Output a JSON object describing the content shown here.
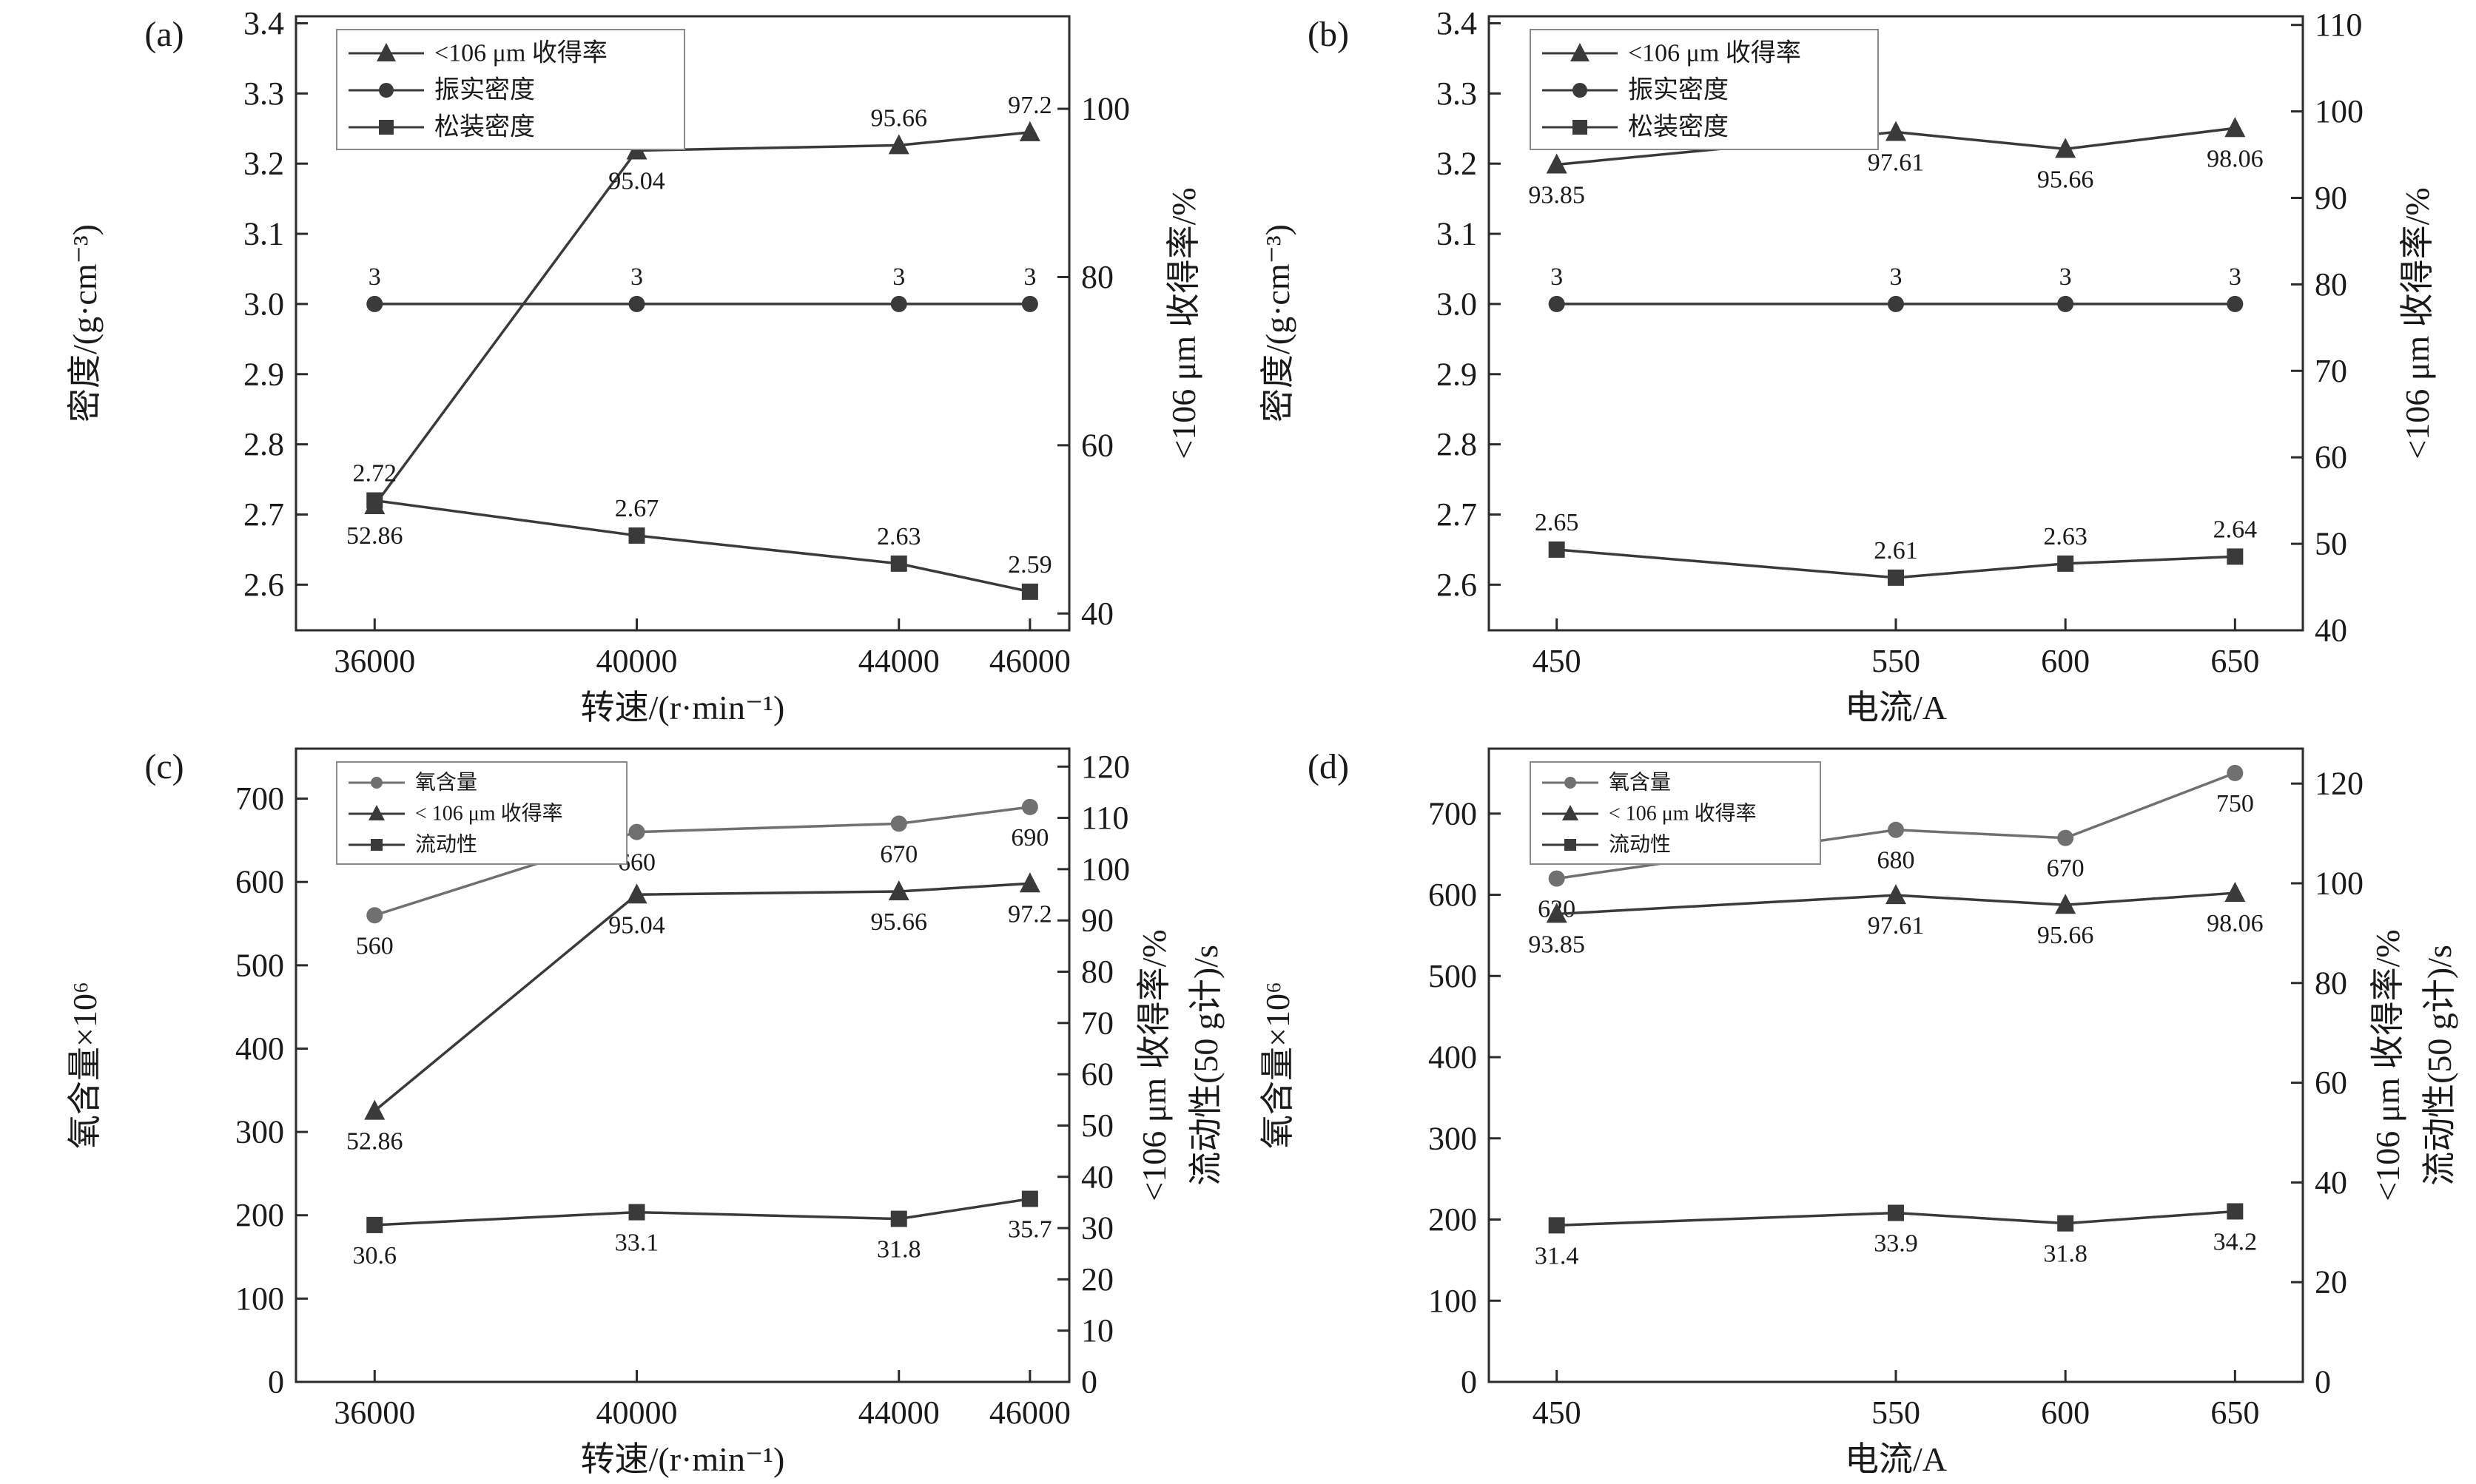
{
  "figure": {
    "background": "#ffffff",
    "text_color": "#1a1a1a",
    "frame_color": "#2b2b2b",
    "default_series_color": "#3a3a3a",
    "oxygen_series_color": "#707070"
  },
  "chart_data": [
    {
      "panel": "(a)",
      "type": "line",
      "xlabel": "转速/(r·min⁻¹)",
      "x": [
        36000,
        40000,
        44000,
        46000
      ],
      "x_tick_labels": [
        "36000",
        "40000",
        "44000",
        "46000"
      ],
      "x_domain": [
        34800,
        46600
      ],
      "left_axis": {
        "label": "密度/(g·cm⁻³)",
        "ticks": [
          2.6,
          2.7,
          2.8,
          2.9,
          3.0,
          3.1,
          3.2,
          3.3,
          3.4
        ],
        "tick_labels": [
          "2.6",
          "2.7",
          "2.8",
          "2.9",
          "3.0",
          "3.1",
          "3.2",
          "3.3",
          "3.4"
        ],
        "domain": [
          2.535,
          3.41
        ]
      },
      "right_axis": {
        "labels": [
          "<106 μm 收得率/%"
        ],
        "ticks": [
          40,
          60,
          80,
          100
        ],
        "tick_labels": [
          "40",
          "60",
          "80",
          "100"
        ],
        "domain": [
          38,
          111
        ]
      },
      "legend": [
        {
          "marker": "triangle",
          "label": "<106 μm 收得率"
        },
        {
          "marker": "circle",
          "label": "振实密度"
        },
        {
          "marker": "square",
          "label": "松装密度"
        }
      ],
      "series": [
        {
          "name": "<106 μm 收得率",
          "marker": "triangle",
          "axis": "right",
          "color": "#3a3a3a",
          "values": [
            52.86,
            95.04,
            95.66,
            97.2
          ],
          "point_labels": [
            "52.86",
            "95.04",
            "95.66",
            "97.2"
          ],
          "label_pos": [
            "below",
            "below",
            "above",
            "above"
          ]
        },
        {
          "name": "振实密度",
          "marker": "circle",
          "axis": "left",
          "color": "#3a3a3a",
          "values": [
            3,
            3,
            3,
            3
          ],
          "point_labels": [
            "3",
            "3",
            "3",
            "3"
          ],
          "label_pos": [
            "above",
            "above",
            "above",
            "above"
          ]
        },
        {
          "name": "松装密度",
          "marker": "square",
          "axis": "left",
          "color": "#3a3a3a",
          "values": [
            2.72,
            2.67,
            2.63,
            2.59
          ],
          "point_labels": [
            "2.72",
            "2.67",
            "2.63",
            "2.59"
          ],
          "label_pos": [
            "above",
            "above",
            "above",
            "above"
          ]
        }
      ]
    },
    {
      "panel": "(b)",
      "type": "line",
      "xlabel": "电流/A",
      "x": [
        450,
        550,
        600,
        650
      ],
      "x_tick_labels": [
        "450",
        "550",
        "600",
        "650"
      ],
      "x_domain": [
        430,
        670
      ],
      "left_axis": {
        "label": "密度/(g·cm⁻³)",
        "ticks": [
          2.6,
          2.7,
          2.8,
          2.9,
          3.0,
          3.1,
          3.2,
          3.3,
          3.4
        ],
        "tick_labels": [
          "2.6",
          "2.7",
          "2.8",
          "2.9",
          "3.0",
          "3.1",
          "3.2",
          "3.3",
          "3.4"
        ],
        "domain": [
          2.535,
          3.41
        ]
      },
      "right_axis": {
        "labels": [
          "<106 μm 收得率/%"
        ],
        "ticks": [
          40,
          50,
          60,
          70,
          80,
          90,
          100,
          110
        ],
        "tick_labels": [
          "40",
          "50",
          "60",
          "70",
          "80",
          "90",
          "100",
          "110"
        ],
        "domain": [
          40,
          111
        ]
      },
      "legend": [
        {
          "marker": "triangle",
          "label": "<106 μm 收得率"
        },
        {
          "marker": "circle",
          "label": "振实密度"
        },
        {
          "marker": "square",
          "label": "松装密度"
        }
      ],
      "series": [
        {
          "name": "<106 μm 收得率",
          "marker": "triangle",
          "axis": "right",
          "color": "#3a3a3a",
          "values": [
            93.85,
            97.61,
            95.66,
            98.06
          ],
          "point_labels": [
            "93.85",
            "97.61",
            "95.66",
            "98.06"
          ],
          "label_pos": [
            "below",
            "below",
            "below",
            "below"
          ]
        },
        {
          "name": "振实密度",
          "marker": "circle",
          "axis": "left",
          "color": "#3a3a3a",
          "values": [
            3,
            3,
            3,
            3
          ],
          "point_labels": [
            "3",
            "3",
            "3",
            "3"
          ],
          "label_pos": [
            "above",
            "above",
            "above",
            "above"
          ]
        },
        {
          "name": "松装密度",
          "marker": "square",
          "axis": "left",
          "color": "#3a3a3a",
          "values": [
            2.65,
            2.61,
            2.63,
            2.64
          ],
          "point_labels": [
            "2.65",
            "2.61",
            "2.63",
            "2.64"
          ],
          "label_pos": [
            "above",
            "above",
            "above",
            "above"
          ]
        }
      ]
    },
    {
      "panel": "(c)",
      "type": "line",
      "xlabel": "转速/(r·min⁻¹)",
      "x": [
        36000,
        40000,
        44000,
        46000
      ],
      "x_tick_labels": [
        "36000",
        "40000",
        "44000",
        "46000"
      ],
      "x_domain": [
        34800,
        46600
      ],
      "left_axis": {
        "label": "氧含量×10⁶",
        "ticks": [
          0,
          100,
          200,
          300,
          400,
          500,
          600,
          700
        ],
        "tick_labels": [
          "0",
          "100",
          "200",
          "300",
          "400",
          "500",
          "600",
          "700"
        ],
        "domain": [
          0,
          760
        ]
      },
      "right_axis": {
        "labels": [
          "<106 μm 收得率/%",
          "流动性(50 g计)/s"
        ],
        "ticks": [
          0,
          10,
          20,
          30,
          40,
          50,
          60,
          70,
          80,
          90,
          100,
          110,
          120
        ],
        "tick_labels": [
          "0",
          "10",
          "20",
          "30",
          "40",
          "50",
          "60",
          "70",
          "80",
          "90",
          "100",
          "110",
          "120"
        ],
        "domain": [
          0,
          123.5
        ]
      },
      "legend": [
        {
          "marker": "circle",
          "label": "氧含量"
        },
        {
          "marker": "triangle",
          "label": "< 106 μm 收得率"
        },
        {
          "marker": "square",
          "label": "流动性"
        }
      ],
      "series": [
        {
          "name": "氧含量",
          "marker": "circle",
          "axis": "left",
          "color": "#707070",
          "values": [
            560,
            660,
            670,
            690
          ],
          "point_labels": [
            "560",
            "660",
            "670",
            "690"
          ],
          "label_pos": [
            "below",
            "below",
            "below",
            "below"
          ]
        },
        {
          "name": "<106 μm 收得率",
          "marker": "triangle",
          "axis": "right",
          "color": "#3a3a3a",
          "values": [
            52.86,
            95.04,
            95.66,
            97.2
          ],
          "point_labels": [
            "52.86",
            "95.04",
            "95.66",
            "97.2"
          ],
          "label_pos": [
            "below",
            "below",
            "below",
            "below"
          ]
        },
        {
          "name": "流动性",
          "marker": "square",
          "axis": "right",
          "color": "#3a3a3a",
          "values": [
            30.6,
            33.1,
            31.8,
            35.7
          ],
          "point_labels": [
            "30.6",
            "33.1",
            "31.8",
            "35.7"
          ],
          "label_pos": [
            "below",
            "below",
            "below",
            "below"
          ]
        }
      ]
    },
    {
      "panel": "(d)",
      "type": "line",
      "xlabel": "电流/A",
      "x": [
        450,
        550,
        600,
        650
      ],
      "x_tick_labels": [
        "450",
        "550",
        "600",
        "650"
      ],
      "x_domain": [
        430,
        670
      ],
      "left_axis": {
        "label": "氧含量×10⁶",
        "ticks": [
          0,
          100,
          200,
          300,
          400,
          500,
          600,
          700
        ],
        "tick_labels": [
          "0",
          "100",
          "200",
          "300",
          "400",
          "500",
          "600",
          "700"
        ],
        "domain": [
          0,
          780
        ]
      },
      "right_axis": {
        "labels": [
          "<106 μm 收得率/%",
          "流动性(50 g计)/s"
        ],
        "ticks": [
          0,
          20,
          40,
          60,
          80,
          100,
          120
        ],
        "tick_labels": [
          "0",
          "20",
          "40",
          "60",
          "80",
          "100",
          "120"
        ],
        "domain": [
          0,
          127
        ]
      },
      "legend": [
        {
          "marker": "circle",
          "label": "氧含量"
        },
        {
          "marker": "triangle",
          "label": "< 106 μm 收得率"
        },
        {
          "marker": "square",
          "label": "流动性"
        }
      ],
      "series": [
        {
          "name": "氧含量",
          "marker": "circle",
          "axis": "left",
          "color": "#707070",
          "values": [
            620,
            680,
            670,
            750
          ],
          "point_labels": [
            "620",
            "680",
            "670",
            "750"
          ],
          "label_pos": [
            "below",
            "below",
            "below",
            "below"
          ]
        },
        {
          "name": "<106 μm 收得率",
          "marker": "triangle",
          "axis": "right",
          "color": "#3a3a3a",
          "values": [
            93.85,
            97.61,
            95.66,
            98.06
          ],
          "point_labels": [
            "93.85",
            "97.61",
            "95.66",
            "98.06"
          ],
          "label_pos": [
            "below",
            "below",
            "below",
            "below"
          ]
        },
        {
          "name": "流动性",
          "marker": "square",
          "axis": "right",
          "color": "#3a3a3a",
          "values": [
            31.4,
            33.9,
            31.8,
            34.2
          ],
          "point_labels": [
            "31.4",
            "33.9",
            "31.8",
            "34.2"
          ],
          "label_pos": [
            "below",
            "below",
            "below",
            "below"
          ]
        }
      ]
    }
  ]
}
